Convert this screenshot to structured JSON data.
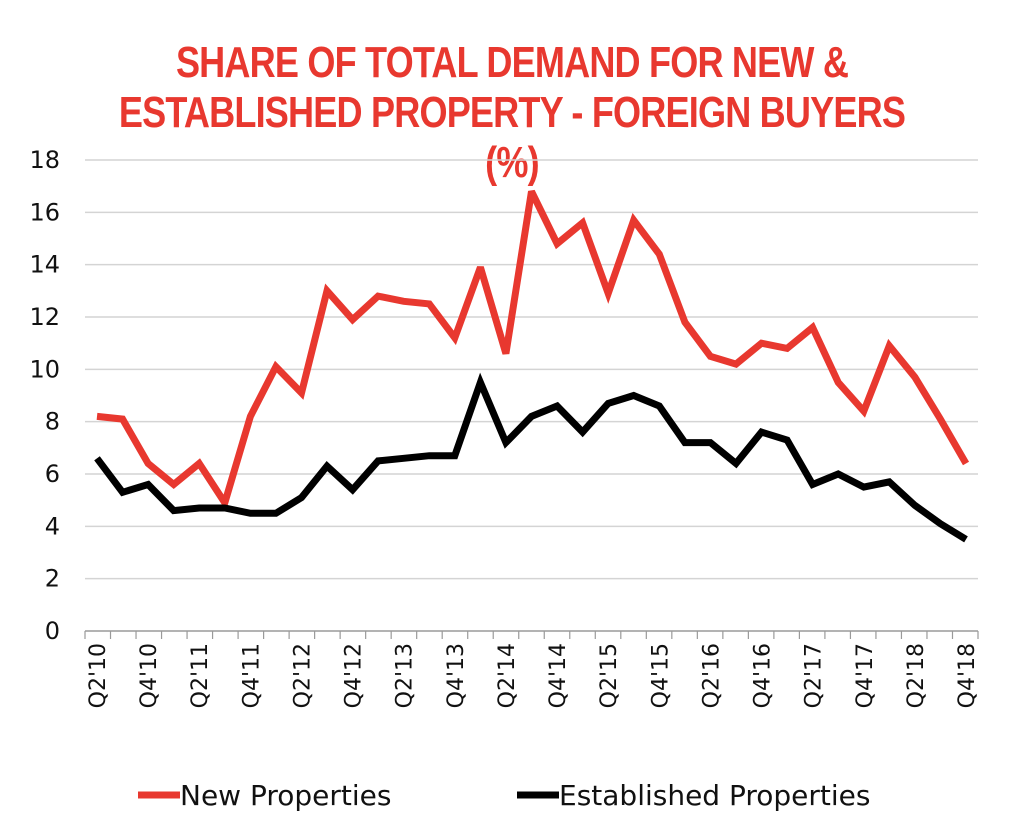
{
  "chart_data": {
    "type": "line",
    "title": "SHARE OF TOTAL DEMAND FOR NEW & ESTABLISHED PROPERTY - FOREIGN BUYERS (%)",
    "title_lines": [
      "SHARE OF TOTAL DEMAND FOR NEW &",
      "ESTABLISHED PROPERTY - FOREIGN BUYERS (%)"
    ],
    "title_color": "#e8382f",
    "x": [
      "Q2'10",
      "Q3'10",
      "Q4'10",
      "Q1'11",
      "Q2'11",
      "Q3'11",
      "Q4'11",
      "Q1'12",
      "Q2'12",
      "Q3'12",
      "Q4'12",
      "Q1'13",
      "Q2'13",
      "Q3'13",
      "Q4'13",
      "Q1'14",
      "Q2'14",
      "Q3'14",
      "Q4'14",
      "Q1'15",
      "Q2'15",
      "Q3'15",
      "Q4'15",
      "Q1'16",
      "Q2'16",
      "Q3'16",
      "Q4'16",
      "Q1'17",
      "Q2'17",
      "Q3'17",
      "Q4'17",
      "Q1'18",
      "Q2'18",
      "Q3'18",
      "Q4'18"
    ],
    "xtick_labels": [
      "Q2'10",
      "Q4'10",
      "Q2'11",
      "Q4'11",
      "Q2'12",
      "Q4'12",
      "Q2'13",
      "Q4'13",
      "Q2'14",
      "Q4'14",
      "Q2'15",
      "Q4'15",
      "Q2'16",
      "Q4'16",
      "Q2'17",
      "Q4'17",
      "Q2'18",
      "Q4'18"
    ],
    "ylim": [
      0,
      18
    ],
    "yticks": [
      0,
      2,
      4,
      6,
      8,
      10,
      12,
      14,
      16,
      18
    ],
    "grid": true,
    "legend_position": "bottom",
    "series": [
      {
        "name": "New Properties",
        "color": "#e8382f",
        "values": [
          8.2,
          8.1,
          6.4,
          5.6,
          6.4,
          4.9,
          8.2,
          10.1,
          9.1,
          13.0,
          11.9,
          12.8,
          12.6,
          12.5,
          11.2,
          13.9,
          10.6,
          16.8,
          14.8,
          15.6,
          12.9,
          15.7,
          14.4,
          11.8,
          10.5,
          10.2,
          11.0,
          10.8,
          11.6,
          9.5,
          8.4,
          10.9,
          9.7,
          8.1,
          6.4
        ]
      },
      {
        "name": "Established Properties",
        "color": "#000000",
        "values": [
          6.6,
          5.3,
          5.6,
          4.6,
          4.7,
          4.7,
          4.5,
          4.5,
          5.1,
          6.3,
          5.4,
          6.5,
          6.6,
          6.7,
          6.7,
          9.5,
          7.2,
          8.2,
          8.6,
          7.6,
          8.7,
          9.0,
          8.6,
          7.2,
          7.2,
          6.4,
          7.6,
          7.3,
          5.6,
          6.0,
          5.5,
          5.7,
          4.8,
          4.1,
          3.5
        ]
      }
    ]
  }
}
